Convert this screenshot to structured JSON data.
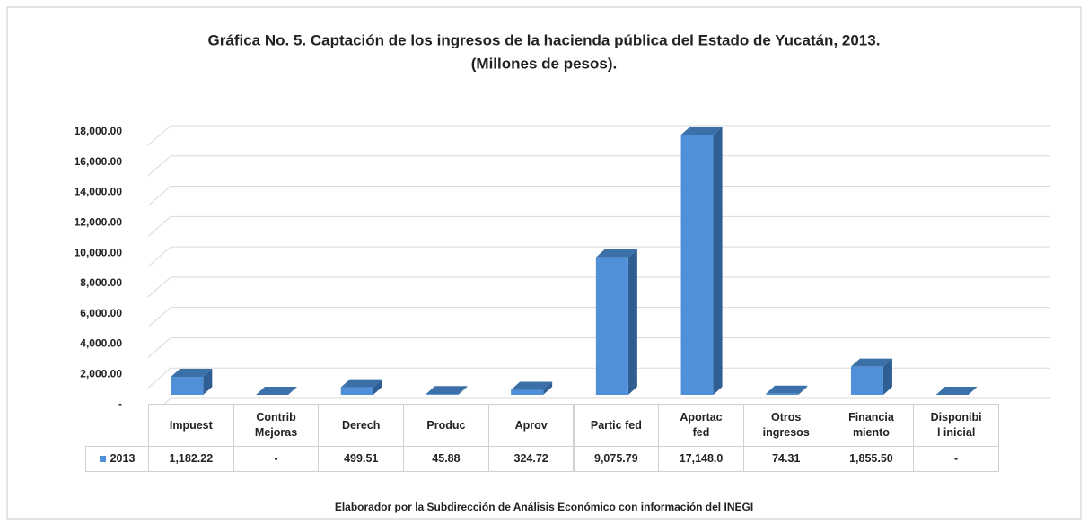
{
  "chart_data": {
    "type": "bar3d",
    "title": "Gráfica No.  5. Captación de los ingresos de la hacienda pública del Estado de Yucatán, 2013.",
    "subtitle": "(Millones de pesos).",
    "footer": "Elaborador por la Subdirección de Análisis Económico con información del INEGI",
    "categories": [
      "Impuest",
      "Contrib\nMejoras",
      "Derech",
      "Produc",
      "Aprov",
      "Partic fed",
      "Aportac\nfed",
      "Otros\ningresos",
      "Financia\nmiento",
      "Disponibi\nl inicial"
    ],
    "series": [
      {
        "name": "2013",
        "color": "#4f90d8",
        "values": [
          1182.22,
          0,
          499.51,
          45.88,
          324.72,
          9075.79,
          17148.0,
          74.31,
          1855.5,
          0
        ],
        "value_labels": [
          "1,182.22",
          "-",
          "499.51",
          "45.88",
          "324.72",
          "9,075.79",
          "17,148.0",
          "74.31",
          "1,855.50",
          "-"
        ]
      }
    ],
    "ylim": [
      0,
      18000
    ],
    "yticks": [
      {
        "value": 0,
        "label": "-"
      },
      {
        "value": 2000,
        "label": "2,000.00"
      },
      {
        "value": 4000,
        "label": "4,000.00"
      },
      {
        "value": 6000,
        "label": "6,000.00"
      },
      {
        "value": 8000,
        "label": "8,000.00"
      },
      {
        "value": 10000,
        "label": "10,000.00"
      },
      {
        "value": 12000,
        "label": "12,000.00"
      },
      {
        "value": 14000,
        "label": "14,000.00"
      },
      {
        "value": 16000,
        "label": "16,000.00"
      },
      {
        "value": 18000,
        "label": "18,000.00"
      }
    ],
    "grid": true
  }
}
